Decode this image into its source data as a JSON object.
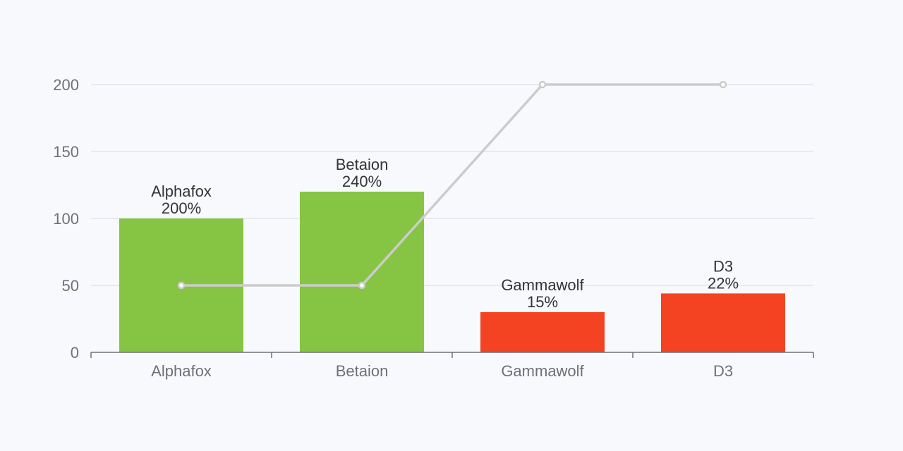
{
  "chart_data": {
    "type": "bar",
    "categories": [
      "Alphafox",
      "Betaion",
      "Gammawolf",
      "D3"
    ],
    "series": [
      {
        "type": "bar",
        "values": [
          100,
          120,
          30,
          44
        ],
        "labels": [
          "200%",
          "240%",
          "15%",
          "22%"
        ],
        "colors": [
          "#86c443",
          "#86c443",
          "#f44323",
          "#f44323"
        ]
      },
      {
        "type": "line",
        "values": [
          50,
          50,
          200,
          200
        ],
        "color": "#cccccc"
      }
    ],
    "yticks": [
      0,
      50,
      100,
      150,
      200
    ],
    "ylim": [
      0,
      200
    ],
    "grid": true,
    "colors": {
      "background": "#f8f9fd",
      "grid": "#e0e6f1",
      "axis": "#6e7079",
      "label": "#333333"
    }
  }
}
